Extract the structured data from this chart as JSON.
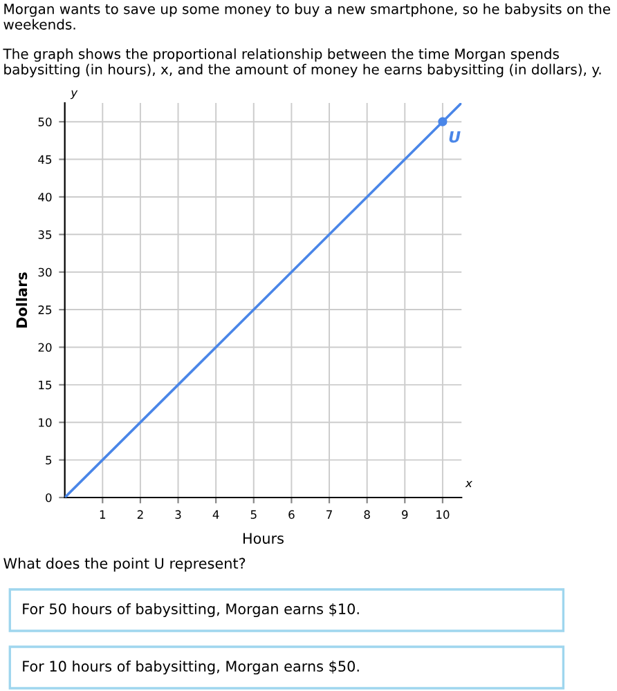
{
  "chart_data": {
    "type": "line",
    "xlabel": "Hours",
    "ylabel": "Dollars",
    "series": [
      {
        "color": "#4a86e8",
        "x": [
          0,
          10,
          10.5
        ],
        "values": [
          0,
          50,
          52.5
        ]
      },
      {
        "type": "scatter",
        "name": "U",
        "color": "#4a86e8",
        "x": [
          10
        ],
        "values": [
          50
        ]
      }
    ],
    "xlim": [
      0,
      10.5
    ],
    "ylim": [
      0,
      52.5
    ],
    "xticks": [
      1,
      2,
      3,
      4,
      5,
      6,
      7,
      8,
      9,
      10
    ],
    "yticks": [
      {
        "value": 0,
        "label": "0"
      },
      5,
      10,
      15,
      20,
      25,
      30,
      35,
      40,
      45,
      50
    ],
    "grid": true,
    "annotations": [
      "Morgan wants to save up some money to buy a new smartphone, so he babysits on the weekends.",
      "The graph shows the proportional relationship between the time Morgan spends babysitting (in hours), x, and the amount of money he earns babysitting (in dollars), y.",
      "y",
      "x",
      "What does the point U represent?",
      "For 50 hours of babysitting, Morgan earns $10.",
      "For 10 hours of babysitting, Morgan earns $50."
    ]
  }
}
